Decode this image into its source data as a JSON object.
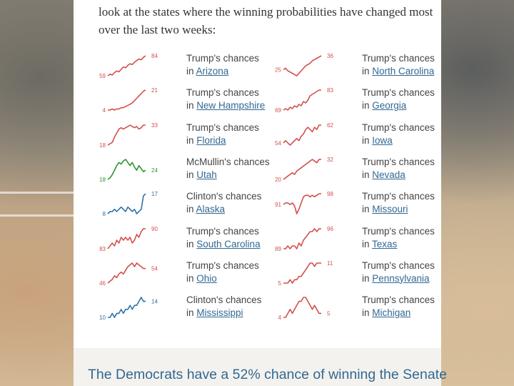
{
  "intro_text": "look at the states where the winning probabilities have changed most over the last two weeks:",
  "colors": {
    "trump": "#d2504b",
    "clinton": "#2e73a6",
    "mcmullin": "#2e9431",
    "link": "#326891"
  },
  "columns": [
    [
      {
        "title": "Trump's chances",
        "prefix": "in",
        "state": "Arizona",
        "start": 59,
        "end": 84,
        "party": "trump",
        "values": [
          59,
          61,
          60,
          63,
          65,
          64,
          67,
          70,
          69,
          72,
          74,
          73,
          76,
          78,
          80,
          79,
          82,
          84
        ]
      },
      {
        "title": "Trump's chances",
        "prefix": "in",
        "state": "New Hampshire",
        "start": 4,
        "end": 21,
        "party": "trump",
        "values": [
          4,
          4,
          5,
          4,
          5,
          5,
          6,
          6,
          7,
          8,
          9,
          10,
          12,
          14,
          16,
          18,
          20,
          21
        ]
      },
      {
        "title": "Trump's chances",
        "prefix": "in",
        "state": "Florida",
        "start": 18,
        "end": 33,
        "party": "trump",
        "values": [
          18,
          19,
          20,
          24,
          27,
          30,
          31,
          30,
          31,
          32,
          33,
          32,
          31,
          32,
          30,
          31,
          33,
          33
        ]
      },
      {
        "title": "McMullin's chances",
        "prefix": "in",
        "state": "Utah",
        "start": 18,
        "end": 24,
        "party": "mcmullin",
        "values": [
          18,
          19,
          21,
          24,
          27,
          29,
          28,
          30,
          31,
          29,
          27,
          29,
          26,
          24,
          27,
          25,
          23,
          24
        ]
      },
      {
        "title": "Clinton's chances",
        "prefix": "in",
        "state": "Alaska",
        "start": 8,
        "end": 17,
        "party": "clinton",
        "values": [
          8,
          9,
          9,
          10,
          9,
          10,
          11,
          10,
          9,
          11,
          10,
          9,
          10,
          8,
          9,
          10,
          16,
          17
        ]
      },
      {
        "title": "Trump's chances",
        "prefix": "in",
        "state": "South Carolina",
        "start": 83,
        "end": 90,
        "party": "trump",
        "values": [
          83,
          84,
          85,
          84,
          86,
          85,
          87,
          86,
          87,
          86,
          87,
          85,
          86,
          88,
          87,
          89,
          90,
          90
        ]
      },
      {
        "title": "Trump's chances",
        "prefix": "in",
        "state": "Ohio",
        "start": 46,
        "end": 54,
        "party": "trump",
        "values": [
          46,
          47,
          48,
          50,
          49,
          51,
          52,
          51,
          53,
          55,
          56,
          57,
          55,
          57,
          56,
          55,
          54,
          54
        ]
      },
      {
        "title": "Clinton's chances",
        "prefix": "in",
        "state": "Mississippi",
        "start": 10,
        "end": 14,
        "party": "clinton",
        "values": [
          10,
          10,
          11,
          10,
          11,
          11,
          12,
          11,
          12,
          12,
          13,
          12,
          13,
          13,
          14,
          15,
          14,
          14
        ]
      }
    ],
    [
      {
        "title": "Trump's chances",
        "prefix": "in",
        "state": "North Carolina",
        "start": 25,
        "end": 36,
        "party": "trump",
        "values": [
          25,
          26,
          24,
          23,
          22,
          21,
          20,
          22,
          24,
          26,
          28,
          29,
          30,
          32,
          33,
          34,
          35,
          36
        ]
      },
      {
        "title": "Trump's chances",
        "prefix": "in",
        "state": "Georgia",
        "start": 69,
        "end": 83,
        "party": "trump",
        "values": [
          69,
          70,
          69,
          71,
          70,
          72,
          71,
          73,
          72,
          75,
          74,
          76,
          79,
          80,
          81,
          82,
          83,
          83
        ]
      },
      {
        "title": "Trump's chances",
        "prefix": "in",
        "state": "Iowa",
        "start": 54,
        "end": 62,
        "party": "trump",
        "values": [
          54,
          55,
          54,
          53,
          54,
          55,
          56,
          55,
          57,
          58,
          60,
          61,
          60,
          59,
          61,
          60,
          62,
          62
        ]
      },
      {
        "title": "Trump's chances",
        "prefix": "in",
        "state": "Nevada",
        "start": 20,
        "end": 32,
        "party": "trump",
        "values": [
          20,
          21,
          22,
          23,
          24,
          23,
          25,
          26,
          27,
          28,
          29,
          30,
          31,
          32,
          31,
          30,
          32,
          32
        ]
      },
      {
        "title": "Trump's chances",
        "prefix": "in",
        "state": "Missouri",
        "start": 91,
        "end": 98,
        "party": "trump",
        "values": [
          91,
          92,
          92,
          91,
          92,
          90,
          85,
          88,
          92,
          96,
          97,
          97,
          96,
          97,
          96,
          97,
          98,
          98
        ]
      },
      {
        "title": "Trump's chances",
        "prefix": "in",
        "state": "Texas",
        "start": 89,
        "end": 96,
        "party": "trump",
        "values": [
          89,
          89,
          90,
          89,
          90,
          90,
          89,
          91,
          90,
          92,
          93,
          94,
          95,
          95,
          96,
          95,
          96,
          96
        ]
      },
      {
        "title": "Trump's chances",
        "prefix": "in",
        "state": "Pennsylvania",
        "start": 5,
        "end": 11,
        "party": "trump",
        "values": [
          5,
          5,
          5,
          6,
          5,
          6,
          6,
          7,
          7,
          8,
          9,
          10,
          11,
          11,
          10,
          11,
          11,
          11
        ]
      },
      {
        "title": "Trump's chances",
        "prefix": "in",
        "state": "Michigan",
        "start": 4,
        "end": 5,
        "party": "trump",
        "values": [
          4,
          4,
          5,
          6,
          5,
          6,
          7,
          8,
          8,
          9,
          9,
          8,
          7,
          6,
          7,
          6,
          5,
          5
        ]
      }
    ]
  ],
  "footer_headline": "The Democrats have a 52% chance of winning the Senate"
}
